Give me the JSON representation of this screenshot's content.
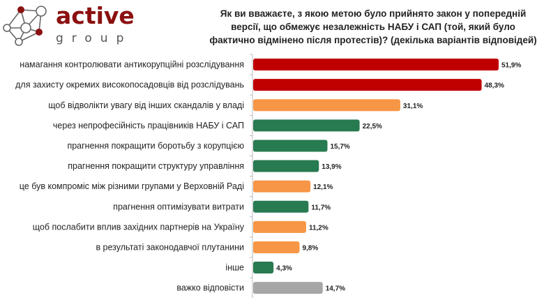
{
  "logo": {
    "word1": "active",
    "word2": "group"
  },
  "chart_data": {
    "type": "bar",
    "orientation": "horizontal",
    "title": "Як ви вважаєте, з якою метою було прийнято закон у попередній версії, що обмежує незалежність НАБУ і САП (той, який було фактично відмінено після протестів)? (декілька варіантів відповідей)",
    "categories": [
      "намагання контролювати антикорупційні розслідування",
      "для захисту окремих високопосадовців від розслідувань",
      "щоб відволікти увагу від інших скандалів у владі",
      "через непрофесійність працівників НАБУ і САП",
      "прагнення покращити боротьбу з корупцією",
      "прагнення покращити структуру управління",
      "це був компроміс між різними групами у Верховній Раді",
      "прагнення оптимізувати витрати",
      "щоб послабити вплив західних партнерів на Україну",
      "в результаті законодавчої плутанини",
      "інше",
      "важко відповісти"
    ],
    "values": [
      51.9,
      48.3,
      31.1,
      22.5,
      15.7,
      13.9,
      12.1,
      11.7,
      11.2,
      9.8,
      4.3,
      14.7
    ],
    "labels": [
      "51,9%",
      "48,3%",
      "31,1%",
      "22,5%",
      "15,7%",
      "13,9%",
      "12,1%",
      "11,7%",
      "11,2%",
      "9,8%",
      "4,3%",
      "14,7%"
    ],
    "colors": [
      "#c00000",
      "#c00000",
      "#f79646",
      "#287a50",
      "#287a50",
      "#287a50",
      "#f79646",
      "#287a50",
      "#f79646",
      "#f79646",
      "#287a50",
      "#a6a6a6"
    ],
    "xlabel": "",
    "ylabel": "",
    "xlim": [
      0,
      55
    ],
    "grid": false
  }
}
